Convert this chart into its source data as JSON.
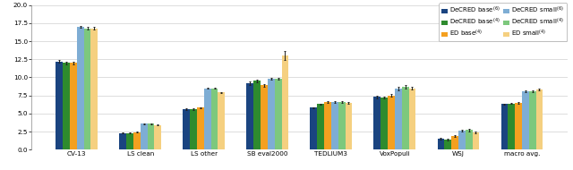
{
  "categories": [
    "CV-13",
    "LS clean",
    "LS other",
    "SB eval2000",
    "TEDLIUM3",
    "VoxPopuli",
    "WSJ",
    "macro avg."
  ],
  "series": {
    "DeCRED base(6)": [
      12.2,
      2.3,
      5.6,
      9.2,
      5.8,
      7.3,
      1.5,
      6.3
    ],
    "DeCRED base(4)": [
      12.0,
      2.3,
      5.6,
      9.5,
      6.3,
      7.2,
      1.4,
      6.4
    ],
    "ED base(4)": [
      12.0,
      2.4,
      5.8,
      8.9,
      6.6,
      7.5,
      1.9,
      6.5
    ],
    "DeCRED small(6)": [
      17.0,
      3.6,
      8.5,
      9.8,
      6.6,
      8.5,
      2.6,
      8.1
    ],
    "DeCRED small(4)": [
      16.8,
      3.6,
      8.5,
      9.8,
      6.6,
      8.7,
      2.7,
      8.1
    ],
    "ED small(4)": [
      16.8,
      3.4,
      7.9,
      13.0,
      6.5,
      8.5,
      2.4,
      8.3
    ]
  },
  "errors": {
    "DeCRED base(6)": [
      0.2,
      0.05,
      0.1,
      0.2,
      0.1,
      0.2,
      0.15,
      0.1
    ],
    "DeCRED base(4)": [
      0.15,
      0.05,
      0.1,
      0.15,
      0.1,
      0.15,
      0.1,
      0.1
    ],
    "ED base(4)": [
      0.15,
      0.05,
      0.1,
      0.15,
      0.1,
      0.15,
      0.1,
      0.1
    ],
    "DeCRED small(6)": [
      0.15,
      0.05,
      0.1,
      0.15,
      0.15,
      0.25,
      0.15,
      0.1
    ],
    "DeCRED small(4)": [
      0.15,
      0.05,
      0.1,
      0.15,
      0.15,
      0.25,
      0.15,
      0.1
    ],
    "ED small(4)": [
      0.15,
      0.05,
      0.1,
      0.6,
      0.1,
      0.15,
      0.1,
      0.1
    ]
  },
  "colors": {
    "DeCRED base(6)": "#1a4480",
    "DeCRED base(4)": "#2e8b2e",
    "ED base(4)": "#f4a020",
    "DeCRED small(6)": "#7eadd4",
    "DeCRED small(4)": "#7dc87d",
    "ED small(4)": "#f5d080"
  },
  "legend_labels": {
    "DeCRED base(6)": "DeCRED base$^{(6)}$",
    "DeCRED base(4)": "DeCRED base$^{(4)}$",
    "ED base(4)": "ED base$^{(4)}$",
    "DeCRED small(6)": "DeCRED small$^{(6)}$",
    "DeCRED small(4)": "DeCRED small$^{(4)}$",
    "ED small(4)": "ED small$^{(4)}$"
  },
  "ylim": [
    0,
    20
  ],
  "yticks": [
    0.0,
    2.5,
    5.0,
    7.5,
    10.0,
    12.5,
    15.0,
    17.5,
    20.0
  ],
  "background_color": "#ffffff",
  "grid_color": "#d0d0d0",
  "bar_width": 0.11,
  "figsize": [
    6.4,
    1.9
  ],
  "dpi": 100
}
